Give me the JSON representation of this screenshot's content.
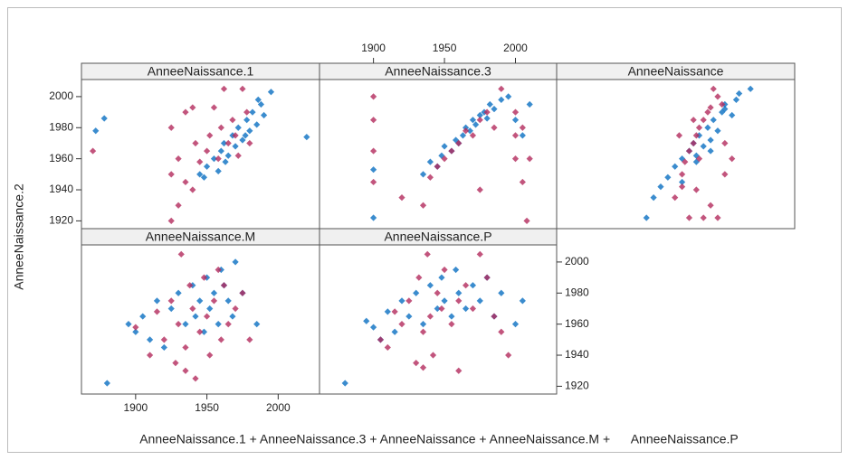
{
  "xlabel": "AnneeNaissance.1 + AnneeNaissance.3 + AnneeNaissance + AnneeNaissance.M +      AnneeNaissance.P",
  "ylabel": "AnneeNaissance.2",
  "chart_data": [
    {
      "type": "scatter",
      "title": "AnneeNaissance.1",
      "xlim": [
        1862,
        2029
      ],
      "ylim": [
        1915,
        2011
      ],
      "yticks": [
        1920,
        1940,
        1960,
        1980,
        2000
      ],
      "ytick_side": "left",
      "series": [
        {
          "color": "#0a6fc2",
          "x": [
            1872,
            1878,
            1945,
            1950,
            1955,
            1958,
            1960,
            1962,
            1965,
            1968,
            1970,
            1972,
            1975,
            1978,
            1980,
            1982,
            1985,
            1988,
            1990,
            1995,
            2020,
            1948,
            1963,
            1977,
            1986
          ],
          "y": [
            1978,
            1986,
            1950,
            1955,
            1960,
            1952,
            1965,
            1970,
            1962,
            1975,
            1968,
            1980,
            1972,
            1985,
            1978,
            1990,
            1982,
            1995,
            1988,
            2003,
            1974,
            1948,
            1958,
            1975,
            1998
          ]
        },
        {
          "color": "#b32a5c",
          "x": [
            1870,
            1925,
            1925,
            1925,
            1930,
            1930,
            1935,
            1935,
            1940,
            1942,
            1945,
            1950,
            1952,
            1955,
            1958,
            1960,
            1962,
            1965,
            1968,
            1970,
            1972,
            1975,
            1978,
            1980,
            1940
          ],
          "y": [
            1965,
            1920,
            1950,
            1980,
            1930,
            1960,
            1945,
            1990,
            1993,
            1970,
            1958,
            1965,
            1975,
            1993,
            1960,
            1980,
            2005,
            1970,
            1985,
            1975,
            1962,
            2005,
            1990,
            1970,
            1940
          ]
        }
      ]
    },
    {
      "type": "scatter",
      "title": "AnneeNaissance.3",
      "xlim": [
        1862,
        2029
      ],
      "ylim": [
        1915,
        2011
      ],
      "xticks": [
        1900,
        1950,
        2000
      ],
      "xtick_side": "top",
      "series": [
        {
          "color": "#0a6fc2",
          "x": [
            1900,
            1900,
            1935,
            1940,
            1945,
            1948,
            1950,
            1955,
            1958,
            1960,
            1963,
            1965,
            1968,
            1970,
            1972,
            1975,
            1978,
            1980,
            1982,
            1985,
            1990,
            1995,
            2000,
            2005,
            2010
          ],
          "y": [
            1922,
            1953,
            1950,
            1958,
            1955,
            1962,
            1968,
            1965,
            1972,
            1970,
            1975,
            1980,
            1978,
            1985,
            1982,
            1988,
            1990,
            1986,
            1995,
            1992,
            1998,
            2000,
            1985,
            1975,
            1995
          ]
        },
        {
          "color": "#b32a5c",
          "x": [
            1900,
            1900,
            1900,
            1900,
            1935,
            1940,
            1945,
            1950,
            1955,
            1960,
            1965,
            1970,
            1975,
            1980,
            1985,
            1990,
            2000,
            2000,
            2000,
            2005,
            2005,
            2008,
            2010,
            1920,
            1975
          ],
          "y": [
            1945,
            1965,
            1985,
            2000,
            1930,
            1948,
            1955,
            1960,
            1965,
            1970,
            1978,
            1975,
            1985,
            1990,
            1980,
            2005,
            1960,
            1975,
            1990,
            1945,
            1980,
            1920,
            1960,
            1935,
            1940
          ]
        }
      ]
    },
    {
      "type": "scatter",
      "title": "AnneeNaissance",
      "xlim": [
        1862,
        2029
      ],
      "ylim": [
        1915,
        2011
      ],
      "series": [
        {
          "color": "#0a6fc2",
          "x": [
            1925,
            1930,
            1935,
            1940,
            1945,
            1950,
            1955,
            1958,
            1960,
            1962,
            1965,
            1968,
            1970,
            1972,
            1975,
            1978,
            1980,
            1985,
            1988,
            1990,
            1998,
            1950,
            1960,
            1970,
            1980
          ],
          "y": [
            1922,
            1935,
            1942,
            1948,
            1955,
            1960,
            1965,
            1970,
            1962,
            1975,
            1968,
            1980,
            1972,
            1985,
            1978,
            1990,
            1995,
            1988,
            1998,
            2002,
            2005,
            1945,
            1958,
            1965,
            1992
          ]
        },
        {
          "color": "#b32a5c",
          "x": [
            1945,
            1950,
            1952,
            1955,
            1958,
            1960,
            1962,
            1965,
            1968,
            1970,
            1972,
            1975,
            1978,
            1980,
            1985,
            1955,
            1965,
            1975,
            1950,
            1960,
            1970,
            1980,
            1948,
            1962,
            1958
          ],
          "y": [
            1935,
            1950,
            1958,
            1965,
            1970,
            1975,
            1980,
            1985,
            1990,
            1993,
            2005,
            2000,
            1995,
            1970,
            1960,
            1922,
            1922,
            1922,
            1942,
            1940,
            1930,
            1950,
            1975,
            1960,
            1985
          ]
        }
      ]
    },
    {
      "type": "scatter",
      "title": "AnneeNaissance.M",
      "xlim": [
        1862,
        2029
      ],
      "ylim": [
        1915,
        2011
      ],
      "xticks": [
        1900,
        1950,
        2000
      ],
      "xtick_side": "bottom",
      "series": [
        {
          "color": "#0a6fc2",
          "x": [
            1880,
            1895,
            1900,
            1905,
            1910,
            1915,
            1920,
            1925,
            1930,
            1935,
            1940,
            1942,
            1945,
            1948,
            1950,
            1952,
            1955,
            1958,
            1960,
            1962,
            1965,
            1968,
            1970,
            1975,
            1985
          ],
          "y": [
            1922,
            1960,
            1955,
            1965,
            1950,
            1975,
            1945,
            1970,
            1980,
            1960,
            1985,
            1965,
            1975,
            1955,
            1990,
            1970,
            1980,
            1960,
            1995,
            1985,
            1975,
            1965,
            2000,
            1980,
            1960
          ]
        },
        {
          "color": "#b32a5c",
          "x": [
            1900,
            1910,
            1915,
            1920,
            1925,
            1928,
            1930,
            1932,
            1935,
            1938,
            1940,
            1942,
            1945,
            1948,
            1950,
            1952,
            1955,
            1958,
            1960,
            1962,
            1965,
            1970,
            1975,
            1980,
            1935
          ],
          "y": [
            1958,
            1940,
            1968,
            1950,
            1975,
            1935,
            1960,
            2005,
            1945,
            1985,
            1970,
            1925,
            1955,
            1990,
            1965,
            1940,
            1975,
            1995,
            1950,
            1985,
            1960,
            1970,
            1980,
            1950,
            1930
          ]
        }
      ]
    },
    {
      "type": "scatter",
      "title": "AnneeNaissance.P",
      "xlim": [
        1862,
        2029
      ],
      "ylim": [
        1915,
        2011
      ],
      "yticks": [
        1920,
        1940,
        1960,
        1980,
        2000
      ],
      "ytick_side": "right",
      "series": [
        {
          "color": "#0a6fc2",
          "x": [
            1880,
            1895,
            1900,
            1905,
            1910,
            1915,
            1920,
            1925,
            1930,
            1935,
            1940,
            1945,
            1948,
            1950,
            1955,
            1958,
            1960,
            1965,
            1970,
            1975,
            1980,
            1985,
            1990,
            2000,
            2005
          ],
          "y": [
            1922,
            1962,
            1958,
            1950,
            1968,
            1955,
            1975,
            1965,
            1980,
            1960,
            1985,
            1970,
            1990,
            1975,
            1965,
            1995,
            1980,
            1970,
            1985,
            1975,
            1990,
            1965,
            1980,
            1960,
            1975
          ]
        },
        {
          "color": "#b32a5c",
          "x": [
            1905,
            1910,
            1915,
            1920,
            1925,
            1930,
            1932,
            1935,
            1938,
            1940,
            1942,
            1945,
            1948,
            1950,
            1955,
            1960,
            1965,
            1970,
            1975,
            1980,
            1985,
            1990,
            1995,
            1935,
            1960
          ],
          "y": [
            1950,
            1945,
            1968,
            1960,
            1975,
            1935,
            1990,
            1955,
            2005,
            1965,
            1940,
            1980,
            1970,
            1995,
            1960,
            1975,
            1985,
            1970,
            2005,
            1990,
            1965,
            1955,
            1940,
            1932,
            1930
          ]
        }
      ]
    }
  ]
}
